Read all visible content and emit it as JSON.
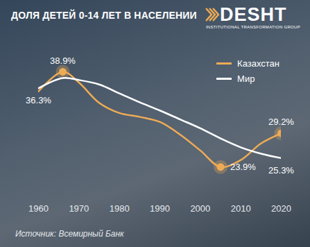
{
  "chart_data": {
    "type": "line",
    "title": "ДОЛЯ ДЕТЕЙ 0-14 ЛЕТ В НАСЕЛЕНИИ",
    "source": "Источник: Всемирный Банк",
    "logo": {
      "name": "DESHT",
      "tagline": "INSTITUTIONAL TRANSFORMATION GROUP"
    },
    "x": [
      1960,
      1966,
      1970,
      1975,
      1980,
      1985,
      1990,
      1995,
      2000,
      2005,
      2010,
      2015,
      2020
    ],
    "series": [
      {
        "name": "Казахстан",
        "color": "#eeab55",
        "marker": "circle",
        "values": [
          35.8,
          38.9,
          37.2,
          34.0,
          32.4,
          31.8,
          31.0,
          29.0,
          26.5,
          23.9,
          25.0,
          27.6,
          29.2
        ],
        "value_labels": [
          null,
          "38.9%",
          null,
          null,
          null,
          null,
          null,
          null,
          null,
          "23.9%",
          null,
          null,
          "29.2%"
        ]
      },
      {
        "name": "Мир",
        "color": "#ffffff",
        "values": [
          36.3,
          37.9,
          37.6,
          36.9,
          35.5,
          34.1,
          32.8,
          31.4,
          30.0,
          28.4,
          27.0,
          26.0,
          25.3
        ],
        "value_labels": [
          "36.3%",
          null,
          null,
          null,
          null,
          null,
          null,
          null,
          null,
          null,
          null,
          null,
          "25.3%"
        ]
      }
    ],
    "xlim": [
      1960,
      2020
    ],
    "xticks": [
      1960,
      1970,
      1980,
      1990,
      2000,
      2010,
      2020
    ],
    "ylim": [
      19,
      42.5
    ],
    "tick_labels": "x",
    "grid": false,
    "legend": "top-right",
    "data_labels": true
  }
}
